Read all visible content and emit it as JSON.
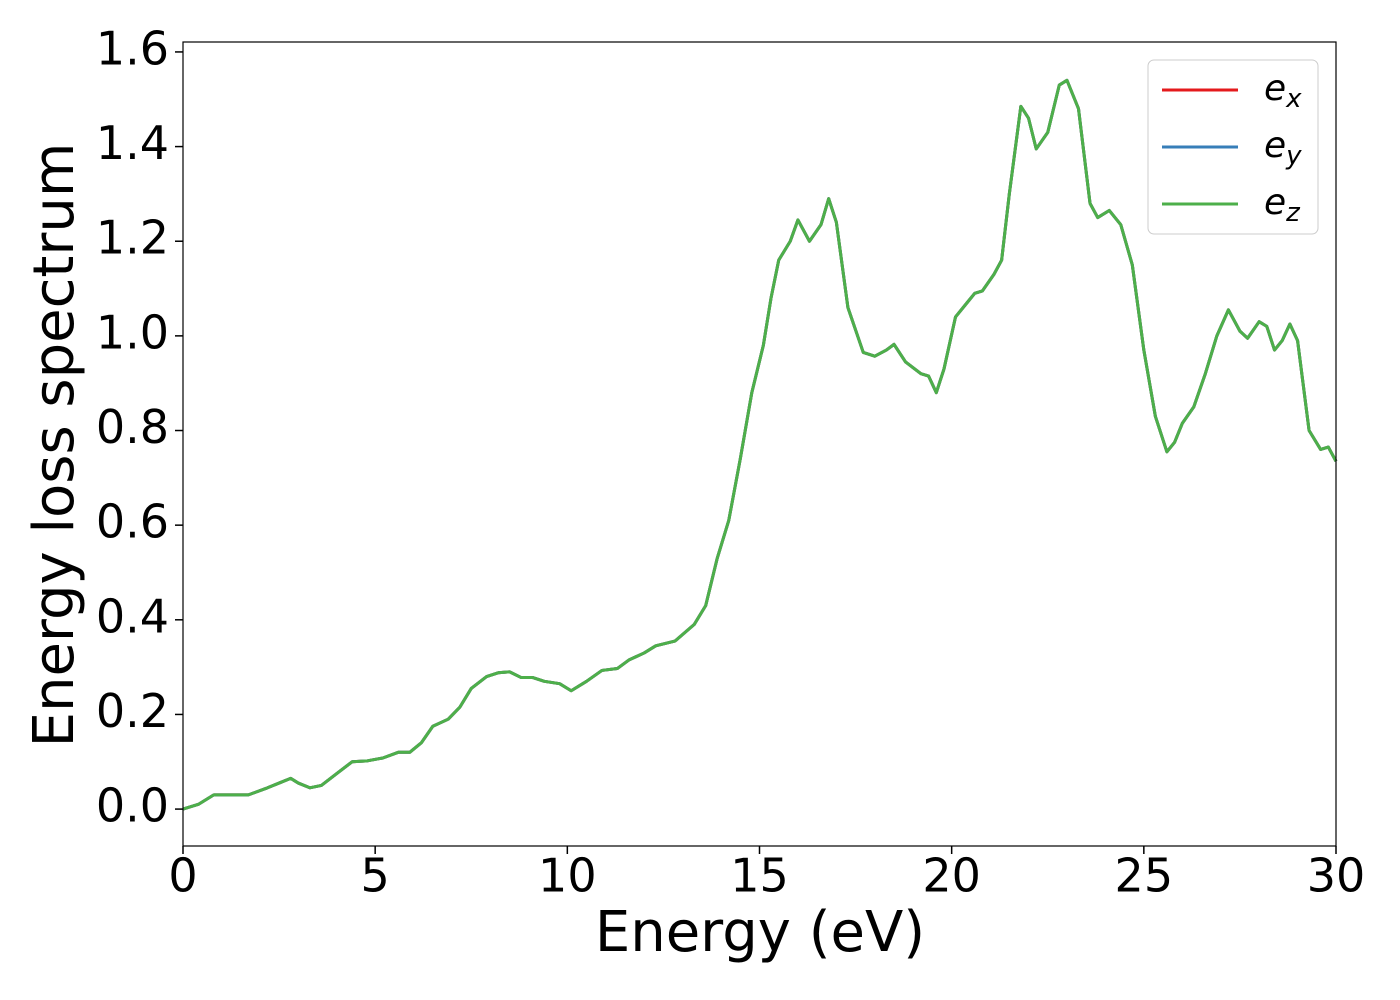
{
  "chart_data": {
    "type": "line",
    "xlabel": "Energy (eV)",
    "ylabel": "Energy loss spectrum",
    "x": [
      0,
      0.4,
      0.8,
      1.2,
      1.7,
      2.2,
      2.5,
      2.8,
      3.0,
      3.3,
      3.6,
      4.0,
      4.4,
      4.8,
      5.2,
      5.6,
      5.9,
      6.2,
      6.5,
      6.9,
      7.2,
      7.5,
      7.9,
      8.2,
      8.5,
      8.8,
      9.1,
      9.4,
      9.8,
      10.1,
      10.5,
      10.9,
      11.3,
      11.6,
      12.0,
      12.3,
      12.8,
      13.3,
      13.6,
      13.9,
      14.2,
      14.5,
      14.8,
      15.1,
      15.3,
      15.5,
      15.8,
      16.0,
      16.3,
      16.6,
      16.8,
      17.0,
      17.3,
      17.7,
      18.0,
      18.3,
      18.5,
      18.8,
      19.2,
      19.4,
      19.6,
      19.8,
      20.1,
      20.4,
      20.6,
      20.8,
      21.1,
      21.3,
      21.5,
      21.8,
      22.0,
      22.2,
      22.5,
      22.8,
      23.0,
      23.3,
      23.6,
      23.8,
      24.1,
      24.4,
      24.7,
      25.0,
      25.3,
      25.6,
      25.8,
      26.0,
      26.3,
      26.6,
      26.9,
      27.2,
      27.5,
      27.7,
      28.0,
      28.2,
      28.4,
      28.6,
      28.8,
      29.0,
      29.3,
      29.6,
      29.8,
      30
    ],
    "series": [
      {
        "name": "ex",
        "color": "#e41a1c",
        "values": [
          0.0,
          0.01,
          0.03,
          0.03,
          0.03,
          0.045,
          0.055,
          0.065,
          0.055,
          0.045,
          0.05,
          0.075,
          0.1,
          0.102,
          0.108,
          0.12,
          0.12,
          0.14,
          0.175,
          0.19,
          0.215,
          0.255,
          0.28,
          0.288,
          0.29,
          0.278,
          0.278,
          0.27,
          0.265,
          0.25,
          0.27,
          0.293,
          0.297,
          0.315,
          0.33,
          0.345,
          0.355,
          0.39,
          0.43,
          0.53,
          0.61,
          0.74,
          0.88,
          0.98,
          1.08,
          1.16,
          1.2,
          1.245,
          1.2,
          1.235,
          1.29,
          1.24,
          1.06,
          0.965,
          0.957,
          0.97,
          0.982,
          0.945,
          0.92,
          0.915,
          0.88,
          0.93,
          1.04,
          1.07,
          1.09,
          1.095,
          1.13,
          1.16,
          1.3,
          1.485,
          1.46,
          1.395,
          1.43,
          1.53,
          1.54,
          1.48,
          1.28,
          1.25,
          1.265,
          1.235,
          1.15,
          0.97,
          0.83,
          0.755,
          0.775,
          0.815,
          0.85,
          0.92,
          1.0,
          1.055,
          1.01,
          0.995,
          1.03,
          1.02,
          0.97,
          0.99,
          1.025,
          0.99,
          0.8,
          0.76,
          0.765,
          0.735
        ]
      },
      {
        "name": "ey",
        "color": "#377eb8",
        "values": [
          0.0,
          0.01,
          0.03,
          0.03,
          0.03,
          0.045,
          0.055,
          0.065,
          0.055,
          0.045,
          0.05,
          0.075,
          0.1,
          0.102,
          0.108,
          0.12,
          0.12,
          0.14,
          0.175,
          0.19,
          0.215,
          0.255,
          0.28,
          0.288,
          0.29,
          0.278,
          0.278,
          0.27,
          0.265,
          0.25,
          0.27,
          0.293,
          0.297,
          0.315,
          0.33,
          0.345,
          0.355,
          0.39,
          0.43,
          0.53,
          0.61,
          0.74,
          0.88,
          0.98,
          1.08,
          1.16,
          1.2,
          1.245,
          1.2,
          1.235,
          1.29,
          1.24,
          1.06,
          0.965,
          0.957,
          0.97,
          0.982,
          0.945,
          0.92,
          0.915,
          0.88,
          0.93,
          1.04,
          1.07,
          1.09,
          1.095,
          1.13,
          1.16,
          1.3,
          1.485,
          1.46,
          1.395,
          1.43,
          1.53,
          1.54,
          1.48,
          1.28,
          1.25,
          1.265,
          1.235,
          1.15,
          0.97,
          0.83,
          0.755,
          0.775,
          0.815,
          0.85,
          0.92,
          1.0,
          1.055,
          1.01,
          0.995,
          1.03,
          1.02,
          0.97,
          0.99,
          1.025,
          0.99,
          0.8,
          0.76,
          0.765,
          0.735
        ]
      },
      {
        "name": "ez",
        "color": "#4daf4a",
        "values": [
          0.0,
          0.01,
          0.03,
          0.03,
          0.03,
          0.045,
          0.055,
          0.065,
          0.055,
          0.045,
          0.05,
          0.075,
          0.1,
          0.102,
          0.108,
          0.12,
          0.12,
          0.14,
          0.175,
          0.19,
          0.215,
          0.255,
          0.28,
          0.288,
          0.29,
          0.278,
          0.278,
          0.27,
          0.265,
          0.25,
          0.27,
          0.293,
          0.297,
          0.315,
          0.33,
          0.345,
          0.355,
          0.39,
          0.43,
          0.53,
          0.61,
          0.74,
          0.88,
          0.98,
          1.08,
          1.16,
          1.2,
          1.245,
          1.2,
          1.235,
          1.29,
          1.24,
          1.06,
          0.965,
          0.957,
          0.97,
          0.982,
          0.945,
          0.92,
          0.915,
          0.88,
          0.93,
          1.04,
          1.07,
          1.09,
          1.095,
          1.13,
          1.16,
          1.3,
          1.485,
          1.46,
          1.395,
          1.43,
          1.53,
          1.54,
          1.48,
          1.28,
          1.25,
          1.265,
          1.235,
          1.15,
          0.97,
          0.83,
          0.755,
          0.775,
          0.815,
          0.85,
          0.92,
          1.0,
          1.055,
          1.01,
          0.995,
          1.03,
          1.02,
          0.97,
          0.99,
          1.025,
          0.99,
          0.8,
          0.76,
          0.765,
          0.735
        ]
      }
    ],
    "xlim": [
      0,
      30
    ],
    "xticks": [
      0,
      5,
      10,
      15,
      20,
      25,
      30
    ],
    "ylim": [
      -0.078,
      1.621
    ],
    "yticks": [
      {
        "value": 0,
        "label": "0.0"
      },
      0.2,
      0.4,
      0.6,
      0.8,
      {
        "value": 1,
        "label": "1.0"
      },
      1.2,
      1.4,
      1.6
    ],
    "grid": false,
    "legend": "upper right"
  }
}
